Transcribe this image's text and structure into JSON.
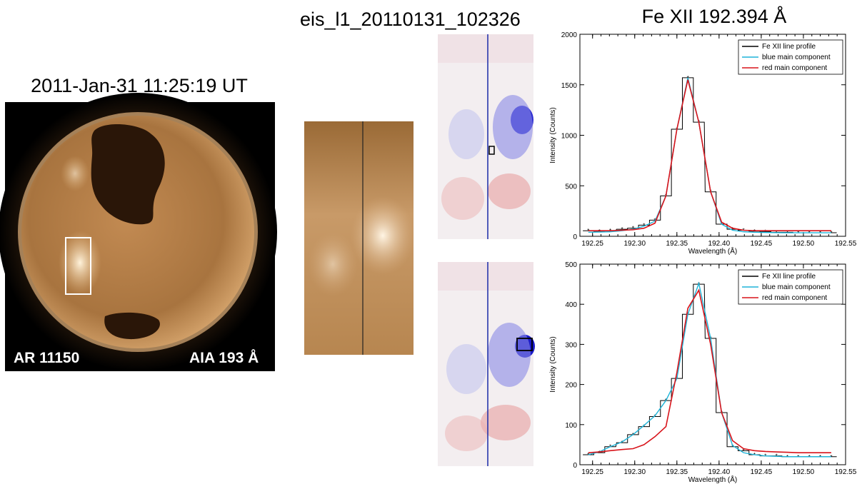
{
  "aia": {
    "title": "2011-Jan-31 11:25:19 UT",
    "ar_label": "AR 11150",
    "instrument_label": "AIA 193 Å"
  },
  "eis": {
    "title": "eis_l1_20110131_102326"
  },
  "spectrum": {
    "title": "Fe XII 192.394 Å"
  },
  "chart_data": [
    {
      "type": "line",
      "xlabel": "Wavelength (Å)",
      "ylabel": "Intensity (Counts)",
      "xlim": [
        192.235,
        192.55
      ],
      "ylim": [
        0,
        2000
      ],
      "xticks": [
        "192.25",
        "192.30",
        "192.35",
        "192.40",
        "192.45",
        "192.50",
        "192.55"
      ],
      "yticks": [
        "0",
        "500",
        "1000",
        "1500",
        "2000"
      ],
      "legend_position": "top-right",
      "legend": [
        "Fe XII line profile",
        "blue main component",
        "red main component"
      ],
      "series": [
        {
          "name": "Fe XII line profile",
          "style": "step",
          "color": "#000000",
          "x": [
            192.245,
            192.258,
            192.271,
            192.285,
            192.298,
            192.311,
            192.324,
            192.337,
            192.35,
            192.363,
            192.376,
            192.39,
            192.403,
            192.416,
            192.429,
            192.442,
            192.455,
            192.468,
            192.481,
            192.494,
            192.507,
            192.52,
            192.533
          ],
          "y": [
            55,
            50,
            55,
            70,
            80,
            110,
            160,
            400,
            1060,
            1570,
            1130,
            440,
            120,
            70,
            60,
            50,
            45,
            40,
            40,
            35,
            35,
            35,
            35
          ]
        },
        {
          "name": "blue main component",
          "color": "#1fb4d8",
          "x": [
            192.245,
            192.258,
            192.271,
            192.285,
            192.298,
            192.311,
            192.324,
            192.337,
            192.35,
            192.363,
            192.376,
            192.39,
            192.403,
            192.416,
            192.429,
            192.442,
            192.455,
            192.468,
            192.481,
            192.494,
            192.507,
            192.52,
            192.533
          ],
          "y": [
            40,
            42,
            45,
            55,
            70,
            100,
            150,
            400,
            1060,
            1570,
            1130,
            440,
            120,
            60,
            45,
            40,
            38,
            36,
            35,
            35,
            35,
            35,
            35
          ]
        },
        {
          "name": "red main component",
          "color": "#d8131a",
          "x": [
            192.245,
            192.258,
            192.271,
            192.285,
            192.298,
            192.311,
            192.324,
            192.337,
            192.35,
            192.363,
            192.376,
            192.39,
            192.403,
            192.416,
            192.429,
            192.442,
            192.455,
            192.468,
            192.481,
            192.494,
            192.507,
            192.52,
            192.533
          ],
          "y": [
            55,
            55,
            55,
            60,
            65,
            80,
            130,
            400,
            1060,
            1550,
            1130,
            440,
            140,
            80,
            60,
            55,
            55,
            55,
            55,
            55,
            55,
            55,
            55
          ]
        }
      ]
    },
    {
      "type": "line",
      "xlabel": "Wavelength (Å)",
      "ylabel": "Intensity (Counts)",
      "xlim": [
        192.235,
        192.55
      ],
      "ylim": [
        0,
        500
      ],
      "xticks": [
        "192.25",
        "192.30",
        "192.35",
        "192.40",
        "192.45",
        "192.50",
        "192.55"
      ],
      "yticks": [
        "0",
        "100",
        "200",
        "300",
        "400",
        "500"
      ],
      "legend_position": "top-right",
      "legend": [
        "Fe XII line profile",
        "blue main component",
        "red main component"
      ],
      "series": [
        {
          "name": "Fe XII line profile",
          "style": "step",
          "color": "#000000",
          "x": [
            192.245,
            192.258,
            192.271,
            192.285,
            192.298,
            192.311,
            192.324,
            192.337,
            192.35,
            192.363,
            192.376,
            192.39,
            192.403,
            192.416,
            192.429,
            192.442,
            192.455,
            192.468,
            192.481,
            192.494,
            192.507,
            192.52,
            192.533
          ],
          "y": [
            25,
            30,
            45,
            55,
            75,
            95,
            120,
            160,
            215,
            375,
            450,
            315,
            130,
            45,
            35,
            25,
            22,
            22,
            20,
            20,
            20,
            20,
            20
          ]
        },
        {
          "name": "blue main component",
          "color": "#1fb4d8",
          "x": [
            192.245,
            192.258,
            192.271,
            192.285,
            192.298,
            192.311,
            192.324,
            192.337,
            192.35,
            192.363,
            192.376,
            192.39,
            192.403,
            192.416,
            192.429,
            192.442,
            192.455,
            192.468,
            192.481,
            192.494,
            192.507,
            192.52,
            192.533
          ],
          "y": [
            25,
            32,
            45,
            57,
            75,
            98,
            122,
            160,
            215,
            375,
            452,
            315,
            130,
            48,
            30,
            25,
            22,
            21,
            20,
            20,
            20,
            20,
            20
          ]
        },
        {
          "name": "red main component",
          "color": "#d8131a",
          "x": [
            192.245,
            192.258,
            192.271,
            192.285,
            192.298,
            192.311,
            192.324,
            192.337,
            192.35,
            192.363,
            192.376,
            192.39,
            192.403,
            192.416,
            192.429,
            192.442,
            192.455,
            192.468,
            192.481,
            192.494,
            192.507,
            192.52,
            192.533
          ],
          "y": [
            30,
            32,
            35,
            38,
            40,
            50,
            70,
            95,
            230,
            390,
            435,
            300,
            130,
            60,
            40,
            35,
            33,
            32,
            31,
            30,
            30,
            30,
            30
          ]
        }
      ]
    }
  ]
}
